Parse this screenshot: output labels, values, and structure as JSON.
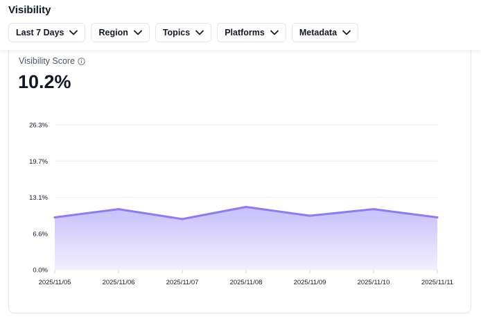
{
  "header": {
    "title": "Visibility",
    "filters": [
      {
        "label": "Last 7 Days",
        "icon": "chevron-down-icon"
      },
      {
        "label": "Region",
        "icon": "chevron-down-icon"
      },
      {
        "label": "Topics",
        "icon": "chevron-down-icon"
      },
      {
        "label": "Platforms",
        "icon": "chevron-down-icon"
      },
      {
        "label": "Metadata",
        "icon": "chevron-down-icon"
      }
    ]
  },
  "card": {
    "label": "Visibility Score",
    "value": "10.2%",
    "info_icon": "info-icon"
  },
  "colors": {
    "line": "#8b7cf6",
    "fill_top": "#c7bffb",
    "fill_bottom": "#f1effe",
    "grid": "#eeeeee"
  },
  "chart_data": {
    "type": "area",
    "title": "",
    "xlabel": "",
    "ylabel": "",
    "x": [
      "2025/11/05",
      "2025/11/06",
      "2025/11/07",
      "2025/11/08",
      "2025/11/09",
      "2025/11/10",
      "2025/11/11"
    ],
    "series": [
      {
        "values": [
          9.5,
          11.0,
          9.2,
          11.4,
          9.8,
          11.0,
          9.5
        ]
      }
    ],
    "yticks": [
      "0.0%",
      "6.6%",
      "13.1%",
      "19.7%",
      "26.3%"
    ],
    "ylim": [
      0,
      26.3
    ],
    "grid": true,
    "legend": "none"
  }
}
